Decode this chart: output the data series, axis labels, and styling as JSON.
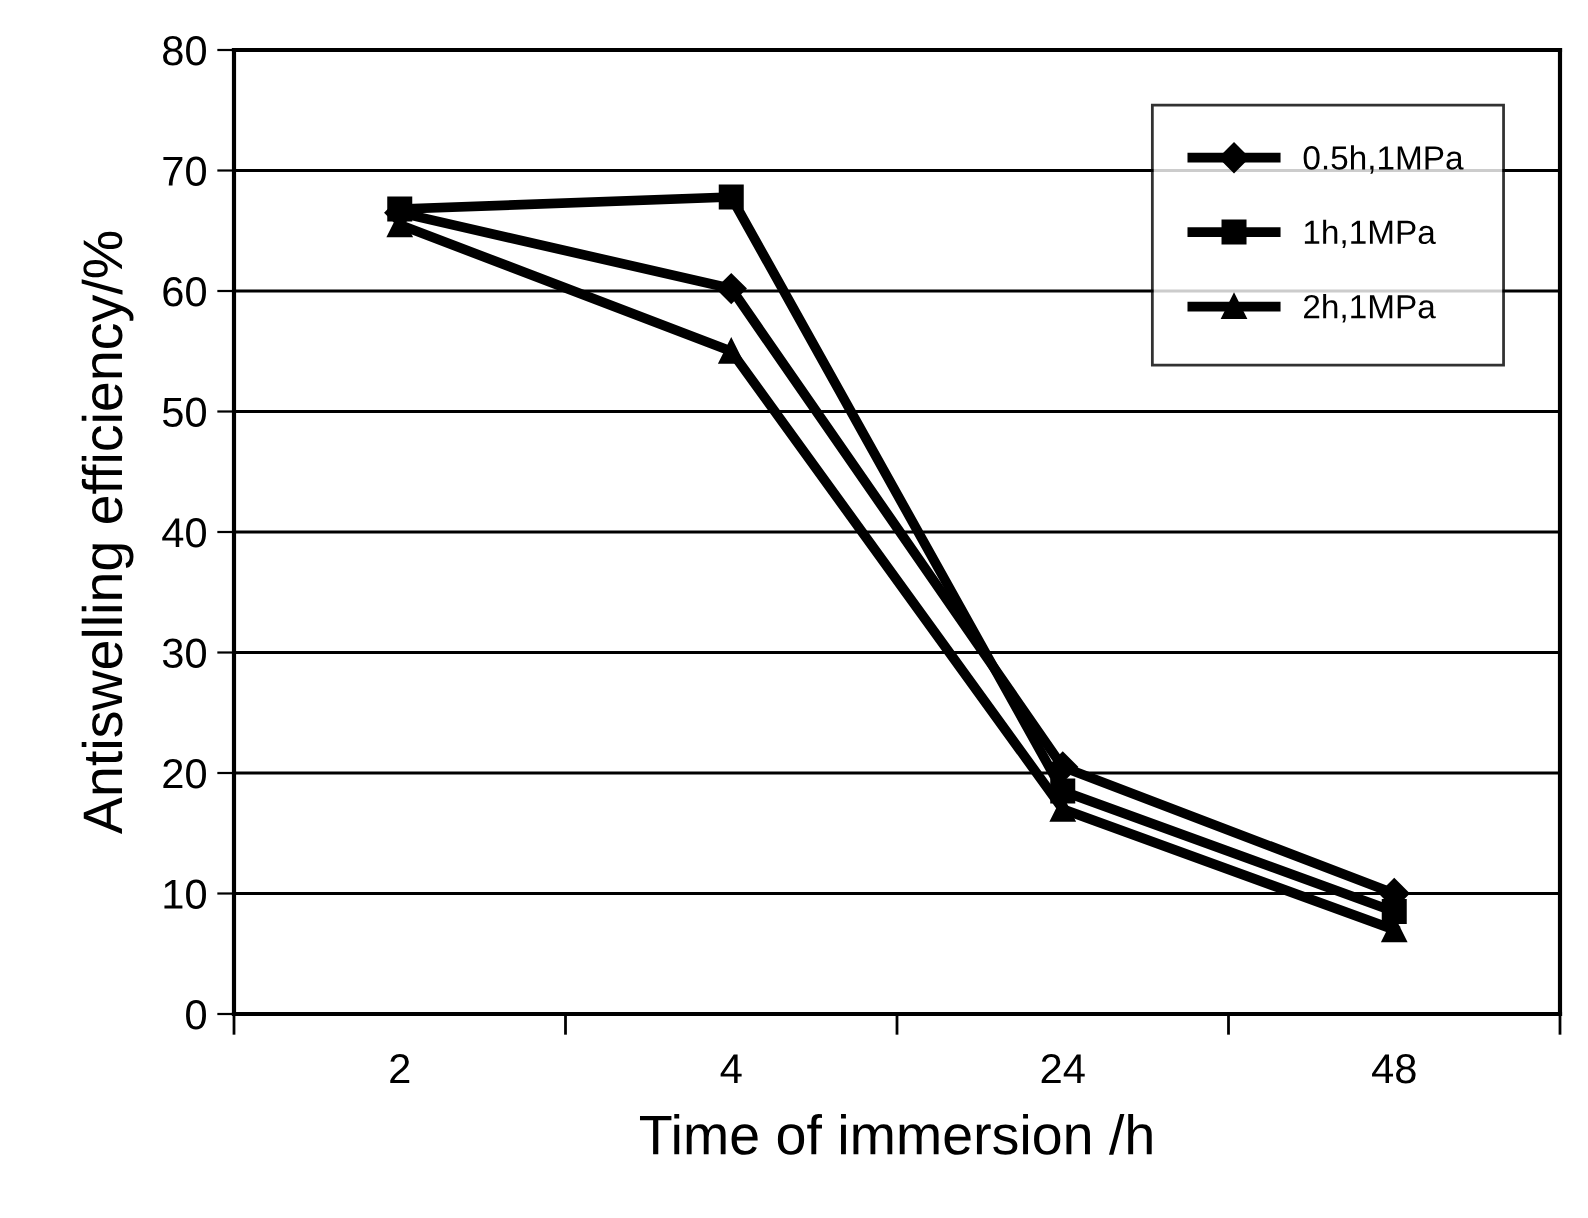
{
  "chart_data": {
    "type": "line",
    "xlabel": "Time of immersion /h",
    "ylabel": "Antiswelling efficiency/%",
    "categories": [
      "2",
      "4",
      "24",
      "48"
    ],
    "series": [
      {
        "name": "0.5h,1MPa",
        "color": "#000000",
        "marker": "diamond",
        "values": [
          66.5,
          60.2,
          20.5,
          10.0
        ]
      },
      {
        "name": "1h,1MPa",
        "color": "#000000",
        "marker": "square",
        "values": [
          66.8,
          67.8,
          18.5,
          8.5
        ]
      },
      {
        "name": "2h,1MPa",
        "color": "#000000",
        "marker": "triangle",
        "values": [
          65.5,
          55.0,
          17.0,
          7.0
        ]
      }
    ],
    "ylim": [
      0,
      80
    ],
    "yticks": [
      0,
      10,
      20,
      30,
      40,
      50,
      60,
      70,
      80
    ],
    "grid": "y",
    "legend": "top right",
    "line_style": "solid"
  }
}
